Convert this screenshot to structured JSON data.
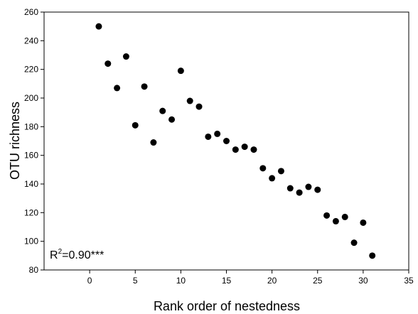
{
  "chart_data": {
    "type": "scatter",
    "title": "",
    "xlabel": "Rank order of nestedness",
    "ylabel": "OTU richness",
    "xlim": [
      -5,
      35
    ],
    "ylim": [
      80,
      260
    ],
    "xticks": [
      0,
      5,
      10,
      15,
      20,
      25,
      30,
      35
    ],
    "yticks": [
      80,
      100,
      120,
      140,
      160,
      180,
      200,
      220,
      240,
      260
    ],
    "grid": false,
    "legend": "none",
    "annotation": {
      "base": "R",
      "sup": "2",
      "rest": "=0.90***"
    },
    "marker_color": "#000000",
    "points": [
      [
        1,
        250
      ],
      [
        2,
        224
      ],
      [
        3,
        207
      ],
      [
        4,
        229
      ],
      [
        5,
        181
      ],
      [
        6,
        208
      ],
      [
        7,
        169
      ],
      [
        8,
        191
      ],
      [
        9,
        185
      ],
      [
        10,
        219
      ],
      [
        11,
        198
      ],
      [
        12,
        194
      ],
      [
        13,
        173
      ],
      [
        14,
        175
      ],
      [
        15,
        170
      ],
      [
        16,
        164
      ],
      [
        17,
        166
      ],
      [
        18,
        164
      ],
      [
        19,
        151
      ],
      [
        20,
        144
      ],
      [
        21,
        149
      ],
      [
        22,
        137
      ],
      [
        23,
        134
      ],
      [
        24,
        138
      ],
      [
        25,
        136
      ],
      [
        26,
        118
      ],
      [
        27,
        114
      ],
      [
        28,
        117
      ],
      [
        29,
        99
      ],
      [
        30,
        113
      ],
      [
        31,
        90
      ]
    ]
  }
}
